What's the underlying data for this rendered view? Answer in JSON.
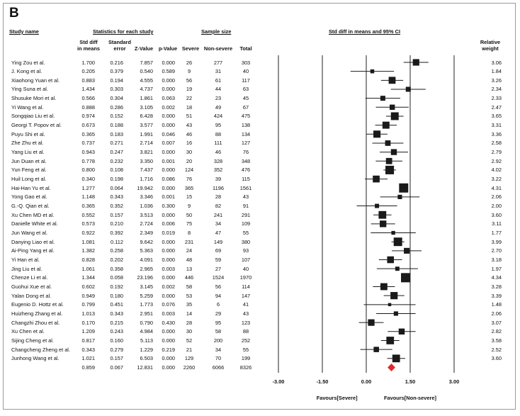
{
  "panel_label": "B",
  "headers": {
    "study": "Study name",
    "stats": "Statistics for each study",
    "sample": "Sample size",
    "plot": "Std diff in means and 95% CI"
  },
  "subheaders": {
    "std_diff": "Std diff\nin means",
    "se": "Standard\nerror",
    "z": "Z-Value",
    "p": "p-Value",
    "severe": "Severe",
    "nonsevere": "Non-severe",
    "total": "Total",
    "weight": "Relative\nweight"
  },
  "rows": [
    {
      "study": "Ying Zou et al.",
      "smd": "1.700",
      "se": "0.216",
      "z": "7.857",
      "p": "0.000",
      "severe": "26",
      "nonsevere": "277",
      "total": "303",
      "weight": "3.06"
    },
    {
      "study": "J. Kong et al.",
      "smd": "0.205",
      "se": "0.379",
      "z": "0.540",
      "p": "0.589",
      "severe": "9",
      "nonsevere": "31",
      "total": "40",
      "weight": "1.84"
    },
    {
      "study": "Xiaohong Yuan et al.",
      "smd": "0.883",
      "se": "0.194",
      "z": "4.555",
      "p": "0.000",
      "severe": "56",
      "nonsevere": "61",
      "total": "117",
      "weight": "3.26"
    },
    {
      "study": "Ying Suna et al.",
      "smd": "1.434",
      "se": "0.303",
      "z": "4.737",
      "p": "0.000",
      "severe": "19",
      "nonsevere": "44",
      "total": "63",
      "weight": "2.34"
    },
    {
      "study": "Shusuke Mori et al.",
      "smd": "0.566",
      "se": "0.304",
      "z": "1.861",
      "p": "0.063",
      "severe": "22",
      "nonsevere": "23",
      "total": "45",
      "weight": "2.33"
    },
    {
      "study": "Yi Wang et al.",
      "smd": "0.888",
      "se": "0.286",
      "z": "3.105",
      "p": "0.002",
      "severe": "18",
      "nonsevere": "49",
      "total": "67",
      "weight": "2.47"
    },
    {
      "study": "Songqiao Liu et al.",
      "smd": "0.974",
      "se": "0.152",
      "z": "6.428",
      "p": "0.000",
      "severe": "51",
      "nonsevere": "424",
      "total": "475",
      "weight": "3.65"
    },
    {
      "study": "Georgi T. Popov et al.",
      "smd": "0.673",
      "se": "0.188",
      "z": "3.577",
      "p": "0.000",
      "severe": "43",
      "nonsevere": "95",
      "total": "138",
      "weight": "3.31"
    },
    {
      "study": "Puyu Shi et al.",
      "smd": "0.365",
      "se": "0.183",
      "z": "1.991",
      "p": "0.046",
      "severe": "46",
      "nonsevere": "88",
      "total": "134",
      "weight": "3.36"
    },
    {
      "study": "Zhe Zhu et al.",
      "smd": "0.737",
      "se": "0.271",
      "z": "2.714",
      "p": "0.007",
      "severe": "16",
      "nonsevere": "111",
      "total": "127",
      "weight": "2.58"
    },
    {
      "study": "Yang Liu et al.",
      "smd": "0.943",
      "se": "0.247",
      "z": "3.821",
      "p": "0.000",
      "severe": "30",
      "nonsevere": "46",
      "total": "76",
      "weight": "2.79"
    },
    {
      "study": "Jun Duan et al.",
      "smd": "0.778",
      "se": "0.232",
      "z": "3.350",
      "p": "0.001",
      "severe": "20",
      "nonsevere": "328",
      "total": "348",
      "weight": "2.92"
    },
    {
      "study": "Yun Feng et al.",
      "smd": "0.800",
      "se": "0.108",
      "z": "7.437",
      "p": "0.000",
      "severe": "124",
      "nonsevere": "352",
      "total": "476",
      "weight": "4.02"
    },
    {
      "study": "Huil Long et al.",
      "smd": "0.340",
      "se": "0.198",
      "z": "1.716",
      "p": "0.086",
      "severe": "76",
      "nonsevere": "39",
      "total": "115",
      "weight": "3.22"
    },
    {
      "study": "Hai-Han Yu et al.",
      "smd": "1.277",
      "se": "0.064",
      "z": "19.942",
      "p": "0.000",
      "severe": "365",
      "nonsevere": "1196",
      "total": "1561",
      "weight": "4.31"
    },
    {
      "study": "Yong Gao et al.",
      "smd": "1.148",
      "se": "0.343",
      "z": "3.346",
      "p": "0.001",
      "severe": "15",
      "nonsevere": "28",
      "total": "43",
      "weight": "2.06"
    },
    {
      "study": "G.-Q. Qian et al.",
      "smd": "0.365",
      "se": "0.352",
      "z": "1.036",
      "p": "0.300",
      "severe": "9",
      "nonsevere": "82",
      "total": "91",
      "weight": "2.00"
    },
    {
      "study": "Xu Chen MD et al.",
      "smd": "0.552",
      "se": "0.157",
      "z": "3.513",
      "p": "0.000",
      "severe": "50",
      "nonsevere": "241",
      "total": "291",
      "weight": "3.60"
    },
    {
      "study": "Danielle White et al.",
      "smd": "0.573",
      "se": "0.210",
      "z": "2.724",
      "p": "0.006",
      "severe": "75",
      "nonsevere": "34",
      "total": "109",
      "weight": "3.11"
    },
    {
      "study": "Jun Wang et al.",
      "smd": "0.922",
      "se": "0.392",
      "z": "2.349",
      "p": "0.019",
      "severe": "8",
      "nonsevere": "47",
      "total": "55",
      "weight": "1.77"
    },
    {
      "study": "Danying Liao et al.",
      "smd": "1.081",
      "se": "0.112",
      "z": "9.642",
      "p": "0.000",
      "severe": "231",
      "nonsevere": "149",
      "total": "380",
      "weight": "3.99"
    },
    {
      "study": "Ai-Ping Yang et al.",
      "smd": "1.382",
      "se": "0.258",
      "z": "5.363",
      "p": "0.000",
      "severe": "24",
      "nonsevere": "69",
      "total": "93",
      "weight": "2.70"
    },
    {
      "study": "Yi Han et al.",
      "smd": "0.828",
      "se": "0.202",
      "z": "4.091",
      "p": "0.000",
      "severe": "48",
      "nonsevere": "59",
      "total": "107",
      "weight": "3.18"
    },
    {
      "study": "Jing Liu et al.",
      "smd": "1.061",
      "se": "0.358",
      "z": "2.965",
      "p": "0.003",
      "severe": "13",
      "nonsevere": "27",
      "total": "40",
      "weight": "1.97"
    },
    {
      "study": "Chenze Li et al.",
      "smd": "1.344",
      "se": "0.058",
      "z": "23.196",
      "p": "0.000",
      "severe": "446",
      "nonsevere": "1524",
      "total": "1970",
      "weight": "4.34"
    },
    {
      "study": "Guohui Xue et al.",
      "smd": "0.602",
      "se": "0.192",
      "z": "3.145",
      "p": "0.002",
      "severe": "58",
      "nonsevere": "56",
      "total": "114",
      "weight": "3.28"
    },
    {
      "study": "Yalan Dong et al.",
      "smd": "0.949",
      "se": "0.180",
      "z": "5.259",
      "p": "0.000",
      "severe": "53",
      "nonsevere": "94",
      "total": "147",
      "weight": "3.39"
    },
    {
      "study": "Eugenio D. Hottz et al.",
      "smd": "0.799",
      "se": "0.451",
      "z": "1.773",
      "p": "0.076",
      "severe": "35",
      "nonsevere": "6",
      "total": "41",
      "weight": "1.48"
    },
    {
      "study": "Huizheng Zhang et al.",
      "smd": "1.013",
      "se": "0.343",
      "z": "2.951",
      "p": "0.003",
      "severe": "14",
      "nonsevere": "29",
      "total": "43",
      "weight": "2.06"
    },
    {
      "study": "Changzhi Zhou et al.",
      "smd": "0.170",
      "se": "0.215",
      "z": "0.790",
      "p": "0.430",
      "severe": "28",
      "nonsevere": "95",
      "total": "123",
      "weight": "3.07"
    },
    {
      "study": "Xu Chen et al.",
      "smd": "1.209",
      "se": "0.243",
      "z": "4.984",
      "p": "0.000",
      "severe": "30",
      "nonsevere": "58",
      "total": "88",
      "weight": "2.82"
    },
    {
      "study": "Sijing Cheng et al.",
      "smd": "0.817",
      "se": "0.160",
      "z": "5.113",
      "p": "0.000",
      "severe": "52",
      "nonsevere": "200",
      "total": "252",
      "weight": "3.58"
    },
    {
      "study": "Changcheng Zheng et al.",
      "smd": "0.343",
      "se": "0.279",
      "z": "1.229",
      "p": "0.219",
      "severe": "21",
      "nonsevere": "34",
      "total": "55",
      "weight": "2.52"
    },
    {
      "study": "Junhong Wang et al.",
      "smd": "1.021",
      "se": "0.157",
      "z": "6.503",
      "p": "0.000",
      "severe": "129",
      "nonsevere": "70",
      "total": "199",
      "weight": "3.60"
    }
  ],
  "summary": {
    "smd": "0.859",
    "se": "0.067",
    "z": "12.831",
    "p": "0.000",
    "severe": "2260",
    "nonsevere": "6066",
    "total": "8326"
  },
  "chart_data": {
    "type": "forest",
    "title": "Std diff in means and 95% CI",
    "xlim": [
      -3.0,
      3.0
    ],
    "ticks": [
      "-3.00",
      "-1.50",
      "0.00",
      "1.50",
      "3.00"
    ],
    "tick_values": [
      -3.0,
      -1.5,
      0.0,
      1.5,
      3.0
    ],
    "reference_line": 0,
    "favours_left": "Favours[Severe]",
    "favours_right": "Favours[Non-severe]",
    "pooled": {
      "estimate": 0.859,
      "se": 0.067
    },
    "summary_color": "#e8262a",
    "marker_color": "#1a1a1a"
  }
}
